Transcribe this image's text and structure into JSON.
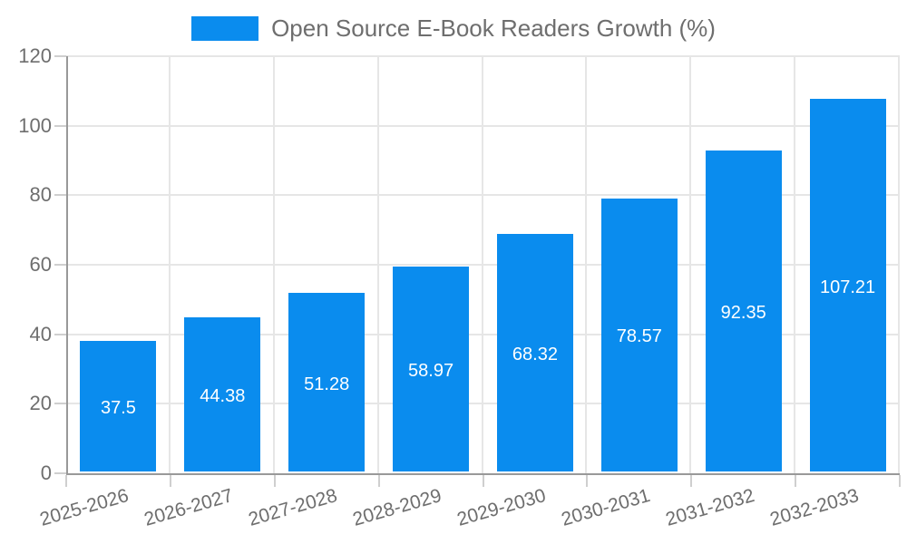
{
  "legend": {
    "label": "Open Source E-Book Readers Growth (%)"
  },
  "colors": {
    "bar": "#0a8cee",
    "axis": "#999999",
    "gridline": "#e6e6e6",
    "tick": "#cfcfcf",
    "label_text": "#6e6e6e",
    "value_label_text": "#ffffff",
    "background": "#ffffff"
  },
  "chart_data": {
    "type": "bar",
    "title": "",
    "series_name": "Open Source E-Book Readers Growth (%)",
    "categories": [
      "2025-2026",
      "2026-2027",
      "2027-2028",
      "2028-2029",
      "2029-2030",
      "2030-2031",
      "2031-2032",
      "2032-2033"
    ],
    "values": [
      37.5,
      44.38,
      51.28,
      58.97,
      68.32,
      78.57,
      92.35,
      107.21
    ],
    "value_labels": [
      "37.5",
      "44.38",
      "51.28",
      "58.97",
      "68.32",
      "78.57",
      "92.35",
      "107.21"
    ],
    "xlabel": "",
    "ylabel": "",
    "ylim": [
      0,
      120
    ],
    "yticks": [
      0,
      20,
      40,
      60,
      80,
      100,
      120
    ],
    "grid": true,
    "legend_position": "top-center",
    "value_label_position": "inside-center",
    "x_label_rotation_deg": -16
  }
}
